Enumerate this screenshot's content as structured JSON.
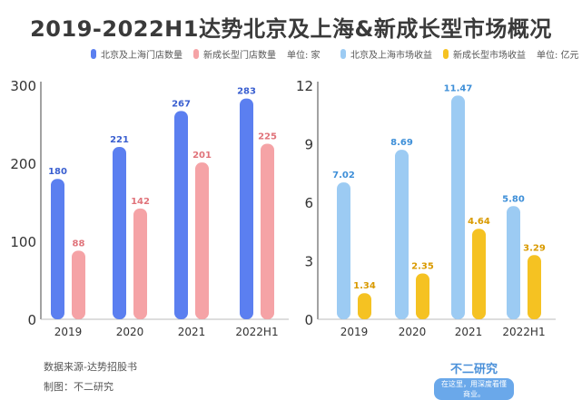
{
  "title": "2019-2022H1达势北京及上海&新成长型市场概况",
  "colors": {
    "blue_dark": "#5b7ff0",
    "red_light": "#f5a3a6",
    "blue_light": "#9ccbf3",
    "yellow": "#f5c222"
  },
  "chart_data": [
    {
      "type": "bar",
      "categories": [
        "2019",
        "2020",
        "2021",
        "2022H1"
      ],
      "unit": "单位: 家",
      "ylim": [
        0,
        300
      ],
      "yticks": [
        "0",
        "100",
        "200",
        "300"
      ],
      "series": [
        {
          "name": "北京及上海门店数量",
          "values": [
            180,
            221,
            267,
            283
          ]
        },
        {
          "name": "新成长型门店数量",
          "values": [
            88,
            142,
            201,
            225
          ]
        }
      ]
    },
    {
      "type": "bar",
      "categories": [
        "2019",
        "2020",
        "2021",
        "2022H1"
      ],
      "unit": "单位: 亿元",
      "ylim": [
        0,
        12
      ],
      "yticks": [
        "0",
        "3",
        "6",
        "9",
        "12"
      ],
      "series": [
        {
          "name": "北京及上海市场收益",
          "values": [
            7.02,
            8.69,
            11.47,
            5.8
          ]
        },
        {
          "name": "新成长型市场收益",
          "values": [
            1.34,
            2.35,
            4.64,
            3.29
          ]
        }
      ]
    }
  ],
  "footer": {
    "source": "数据来源-达势招股书",
    "maker": "制图：不二研究"
  },
  "logo": {
    "name": "不二研究",
    "slogan": "在这里，用深度看懂商业。"
  }
}
